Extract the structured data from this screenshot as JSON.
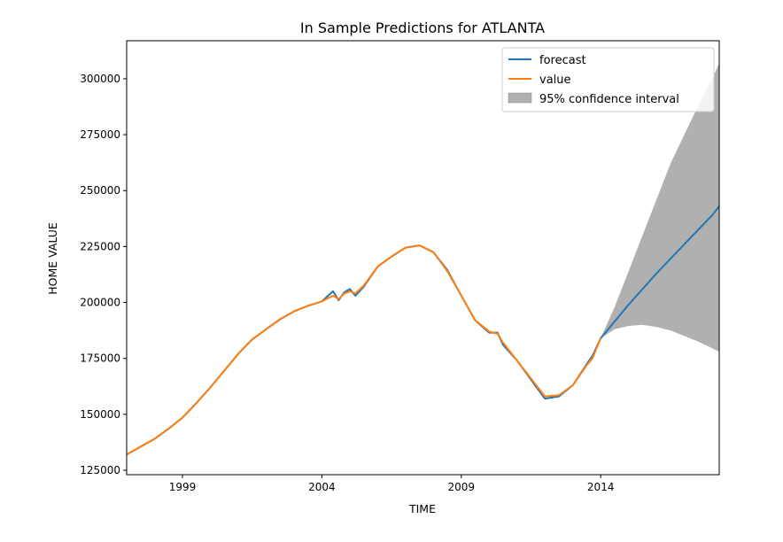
{
  "chart_data": {
    "type": "line",
    "title": "In Sample Predictions for ATLANTA",
    "xlabel": "TIME",
    "ylabel": "HOME VALUE",
    "xlim": [
      1997.0,
      2018.25
    ],
    "ylim": [
      123000,
      317000
    ],
    "x_ticks": [
      1999,
      2004,
      2009,
      2014
    ],
    "x_tick_labels": [
      "1999",
      "2004",
      "2009",
      "2014"
    ],
    "y_ticks": [
      125000,
      150000,
      175000,
      200000,
      225000,
      250000,
      275000,
      300000
    ],
    "y_tick_labels": [
      "125000",
      "150000",
      "175000",
      "200000",
      "225000",
      "250000",
      "275000",
      "300000"
    ],
    "legend": {
      "placement": "top-right",
      "entries": [
        "forecast",
        "value",
        "95% confidence interval"
      ]
    },
    "colors": {
      "forecast": "#1f77b4",
      "value": "#ff7f0e",
      "ci": "#b0b0b0"
    },
    "series": [
      {
        "name": "value",
        "x": [
          1997.0,
          1997.5,
          1998.0,
          1998.5,
          1999.0,
          1999.5,
          2000.0,
          2000.5,
          2001.0,
          2001.5,
          2002.0,
          2002.5,
          2003.0,
          2003.5,
          2004.0,
          2004.4,
          2004.6,
          2004.8,
          2005.0,
          2005.2,
          2005.5,
          2006.0,
          2006.5,
          2007.0,
          2007.5,
          2008.0,
          2008.5,
          2009.0,
          2009.5,
          2010.0,
          2010.3,
          2010.5,
          2011.0,
          2011.5,
          2012.0,
          2012.5,
          2013.0,
          2013.5,
          2013.7,
          2014.0
        ],
        "y": [
          132000,
          135500,
          139000,
          143500,
          148500,
          155000,
          162000,
          169500,
          177000,
          183500,
          188000,
          192500,
          196000,
          198500,
          200500,
          203000,
          201500,
          204000,
          205000,
          204000,
          207500,
          216000,
          220500,
          224500,
          225500,
          222500,
          214000,
          203000,
          192000,
          187000,
          186000,
          182000,
          174000,
          166000,
          158000,
          158500,
          163000,
          172000,
          175000,
          184000
        ]
      },
      {
        "name": "forecast",
        "x": [
          1997.0,
          1997.5,
          1998.0,
          1998.5,
          1999.0,
          1999.5,
          2000.0,
          2000.5,
          2001.0,
          2001.5,
          2002.0,
          2002.5,
          2003.0,
          2003.5,
          2004.0,
          2004.4,
          2004.6,
          2004.8,
          2005.0,
          2005.2,
          2005.5,
          2006.0,
          2006.5,
          2007.0,
          2007.5,
          2008.0,
          2008.5,
          2009.0,
          2009.5,
          2010.0,
          2010.3,
          2010.5,
          2011.0,
          2011.5,
          2012.0,
          2012.5,
          2013.0,
          2013.5,
          2013.7,
          2014.0,
          2015.0,
          2016.0,
          2017.0,
          2018.0,
          2018.25
        ],
        "y": [
          132000,
          135500,
          139000,
          143500,
          148500,
          155000,
          162000,
          169500,
          177000,
          183500,
          188000,
          192500,
          196000,
          198500,
          200500,
          205000,
          201000,
          204500,
          206000,
          203000,
          207000,
          216000,
          220500,
          224500,
          225500,
          222500,
          214500,
          203000,
          192000,
          186500,
          186500,
          181000,
          174000,
          165500,
          157000,
          158000,
          163000,
          172500,
          176000,
          184000,
          199000,
          213000,
          226000,
          239000,
          243000
        ]
      }
    ],
    "confidence_interval": {
      "x": [
        2014.0,
        2014.5,
        2015.0,
        2015.5,
        2016.0,
        2016.5,
        2017.0,
        2017.5,
        2018.0,
        2018.25
      ],
      "upper": [
        184000,
        198000,
        214000,
        230000,
        246000,
        262000,
        275000,
        288000,
        300000,
        307000
      ],
      "lower": [
        184000,
        188000,
        189500,
        190000,
        189000,
        187500,
        185000,
        182500,
        179500,
        178000
      ]
    }
  }
}
